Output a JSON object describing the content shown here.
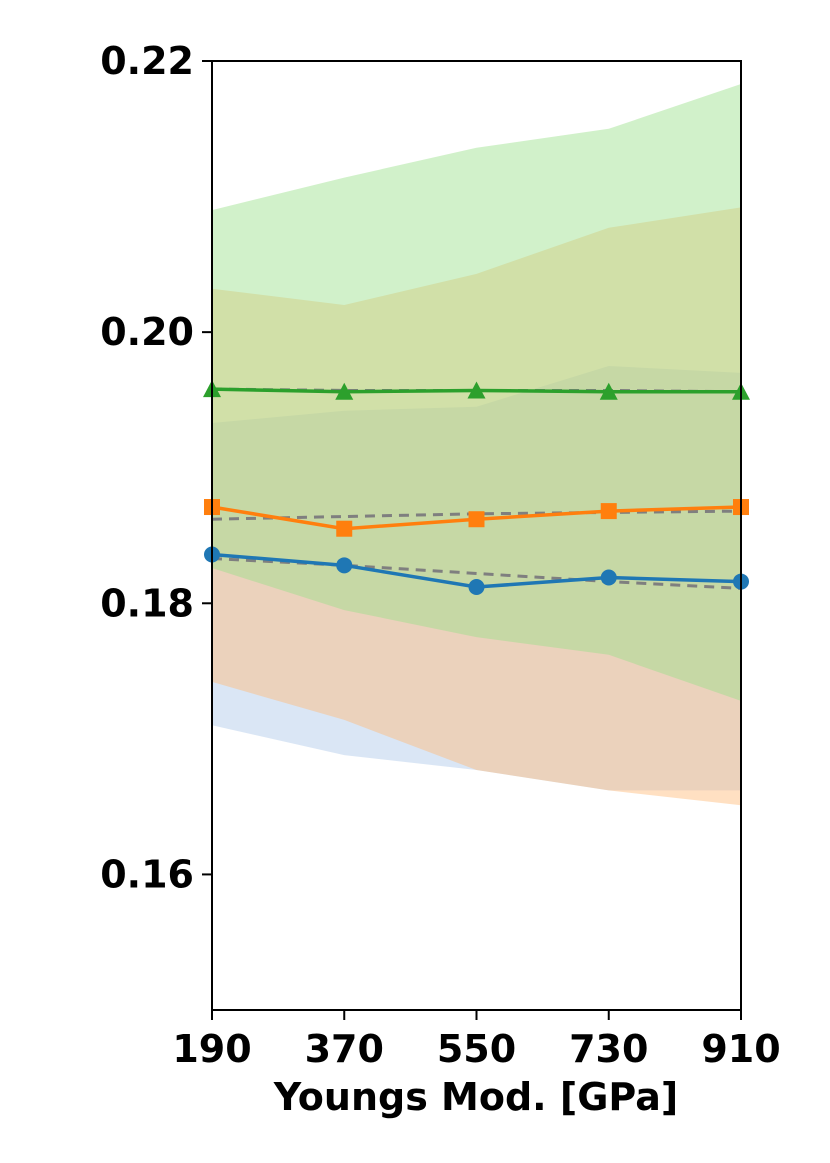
{
  "chart_data": {
    "type": "line",
    "title": "",
    "xlabel": "Youngs Mod. [GPa]",
    "ylabel": "",
    "x": [
      190,
      370,
      550,
      730,
      910
    ],
    "x_tick_labels": [
      "190",
      "370",
      "550",
      "730",
      "910"
    ],
    "xlim": [
      190,
      910
    ],
    "ylim": [
      0.15,
      0.22
    ],
    "y_ticks": [
      0.16,
      0.18,
      0.2,
      0.22
    ],
    "y_tick_labels": [
      "0.16",
      "0.18",
      "0.20",
      "0.22"
    ],
    "grid": false,
    "legend": null,
    "series": [
      {
        "color": "#1f77b4",
        "band_color": "#aec7e8",
        "marker": "circle",
        "values": [
          0.1836,
          0.1828,
          0.1812,
          0.1819,
          0.1816
        ],
        "band_upper": [
          0.1933,
          0.1942,
          0.1945,
          0.1975,
          0.197
        ],
        "band_lower": [
          0.171,
          0.1688,
          0.1677,
          0.1662,
          0.1662
        ],
        "trend": [
          0.1833,
          0.1828,
          0.1822,
          0.1816,
          0.1811
        ]
      },
      {
        "color": "#ff7f0e",
        "band_color": "#ffbb78",
        "marker": "square",
        "values": [
          0.1871,
          0.1855,
          0.1862,
          0.1868,
          0.1871
        ],
        "band_upper": [
          0.2032,
          0.202,
          0.2043,
          0.2077,
          0.2092
        ],
        "band_lower": [
          0.1742,
          0.1714,
          0.1677,
          0.1662,
          0.1651
        ],
        "trend": [
          0.1862,
          0.1864,
          0.1866,
          0.1867,
          0.1868
        ]
      },
      {
        "color": "#2ca02c",
        "band_color": "#98df8a",
        "marker": "triangle",
        "values": [
          0.1958,
          0.1956,
          0.1957,
          0.1956,
          0.1956
        ],
        "band_upper": [
          0.209,
          0.2114,
          0.2136,
          0.215,
          0.2183
        ],
        "band_lower": [
          0.1826,
          0.1795,
          0.1775,
          0.1762,
          0.1728
        ],
        "trend": [
          0.1958,
          0.1957,
          0.1957,
          0.1957,
          0.1956
        ]
      }
    ]
  }
}
